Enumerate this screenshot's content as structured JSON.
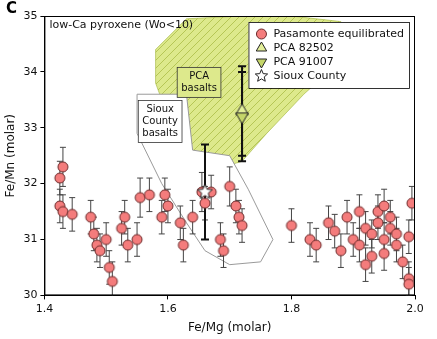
{
  "chart_data": {
    "type": "scatter",
    "title": "low-Ca pyroxene (Wo<10)",
    "annotations": [
      "C"
    ],
    "x_label": "Fe/Mg (molar)",
    "y_label": "Fe/Mn (molar)",
    "xlim": [
      1.4,
      2.0
    ],
    "xticks": [
      1.4,
      1.6,
      1.8,
      {
        "value": 2.0,
        "label": "2.0"
      }
    ],
    "ylim": [
      30,
      35
    ],
    "yticks": [
      30,
      31,
      32,
      33,
      34,
      35
    ],
    "grid": false,
    "legend": "upper right",
    "regions": [
      {
        "name": "PCA basalts",
        "color": "#dde98c",
        "x": [
          1.58,
          1.63,
          1.72,
          1.8,
          1.88,
          1.9,
          1.88,
          1.82,
          1.76,
          1.72,
          1.69,
          1.66,
          1.62,
          1.6,
          1.58
        ],
        "y": [
          34.4,
          34.95,
          35.0,
          35.0,
          34.9,
          34.6,
          34.2,
          33.6,
          32.9,
          32.4,
          32.3,
          32.4,
          32.8,
          33.2,
          33.8
        ]
      },
      {
        "name": "Sioux County basalts",
        "color": "#ffffff",
        "x": [
          1.55,
          1.63,
          1.64,
          1.7,
          1.73,
          1.77,
          1.75,
          1.7,
          1.66,
          1.63,
          1.59,
          1.55
        ],
        "y": [
          33.6,
          33.6,
          32.6,
          32.5,
          31.9,
          31.0,
          30.6,
          30.55,
          30.8,
          31.3,
          32.0,
          32.9
        ]
      }
    ],
    "series": [
      {
        "name": "Pasamonte equilibrated",
        "color": "#f47c7c",
        "marker": "circle",
        "x": [
          1.43,
          1.425,
          1.425,
          1.43,
          1.445,
          1.475,
          1.48,
          1.485,
          1.49,
          1.5,
          1.505,
          1.51,
          1.525,
          1.53,
          1.535,
          1.55,
          1.555,
          1.57,
          1.59,
          1.595,
          1.6,
          1.62,
          1.625,
          1.64,
          1.655,
          1.66,
          1.67,
          1.685,
          1.69,
          1.7,
          1.71,
          1.715,
          1.72,
          1.8,
          1.83,
          1.84,
          1.86,
          1.87,
          1.88,
          1.89,
          1.9,
          1.91,
          1.91,
          1.92,
          1.92,
          1.93,
          1.93,
          1.94,
          1.94,
          1.95,
          1.95,
          1.95,
          1.96,
          1.96,
          1.97,
          1.97,
          1.98,
          1.99,
          1.99,
          1.99,
          1.995
        ],
        "values": [
          32.3,
          32.1,
          31.6,
          31.5,
          31.45,
          31.4,
          31.1,
          30.9,
          30.8,
          31.0,
          30.5,
          30.25,
          31.2,
          31.4,
          30.9,
          31.0,
          31.75,
          31.8,
          31.4,
          31.8,
          31.6,
          31.3,
          30.9,
          31.4,
          31.85,
          31.65,
          31.85,
          31.0,
          30.8,
          31.95,
          31.6,
          31.4,
          31.25,
          31.25,
          31.0,
          30.9,
          31.3,
          31.15,
          30.8,
          31.4,
          31.0,
          31.5,
          30.9,
          31.2,
          30.55,
          31.1,
          30.7,
          31.3,
          31.5,
          31.0,
          31.6,
          30.75,
          31.2,
          31.4,
          30.9,
          31.1,
          30.6,
          30.3,
          31.05,
          30.2,
          31.65
        ],
        "errors": [
          0.35,
          0.3,
          0.3,
          0.3,
          0.3,
          0.3,
          0.3,
          0.3,
          0.3,
          0.3,
          0.3,
          0.35,
          0.3,
          0.3,
          0.3,
          0.3,
          0.35,
          0.3,
          0.3,
          0.3,
          0.3,
          0.3,
          0.3,
          0.3,
          0.35,
          0.3,
          0.3,
          0.3,
          0.3,
          0.35,
          0.3,
          0.3,
          0.3,
          0.3,
          0.3,
          0.3,
          0.3,
          0.3,
          0.3,
          0.3,
          0.3,
          0.3,
          0.3,
          0.3,
          0.3,
          0.25,
          0.3,
          0.3,
          0.3,
          0.3,
          0.3,
          0.3,
          0.3,
          0.3,
          0.3,
          0.3,
          0.3,
          0.3,
          0.3,
          0.3,
          0.3
        ]
      },
      {
        "name": "PCA 82502",
        "color": "#e3ef9a",
        "marker": "triangle-up",
        "x": [
          1.72
        ],
        "values": [
          33.3
        ],
        "errors": [
          0.8
        ]
      },
      {
        "name": "PCA 91007",
        "color": "#c5d66a",
        "marker": "triangle-down",
        "x": [
          1.72
        ],
        "values": [
          33.2
        ],
        "errors": [
          0.8
        ]
      },
      {
        "name": "Sioux County",
        "color": "#ffffff",
        "marker": "star",
        "x": [
          1.66
        ],
        "values": [
          31.85
        ],
        "errors": [
          0.85
        ]
      }
    ]
  }
}
